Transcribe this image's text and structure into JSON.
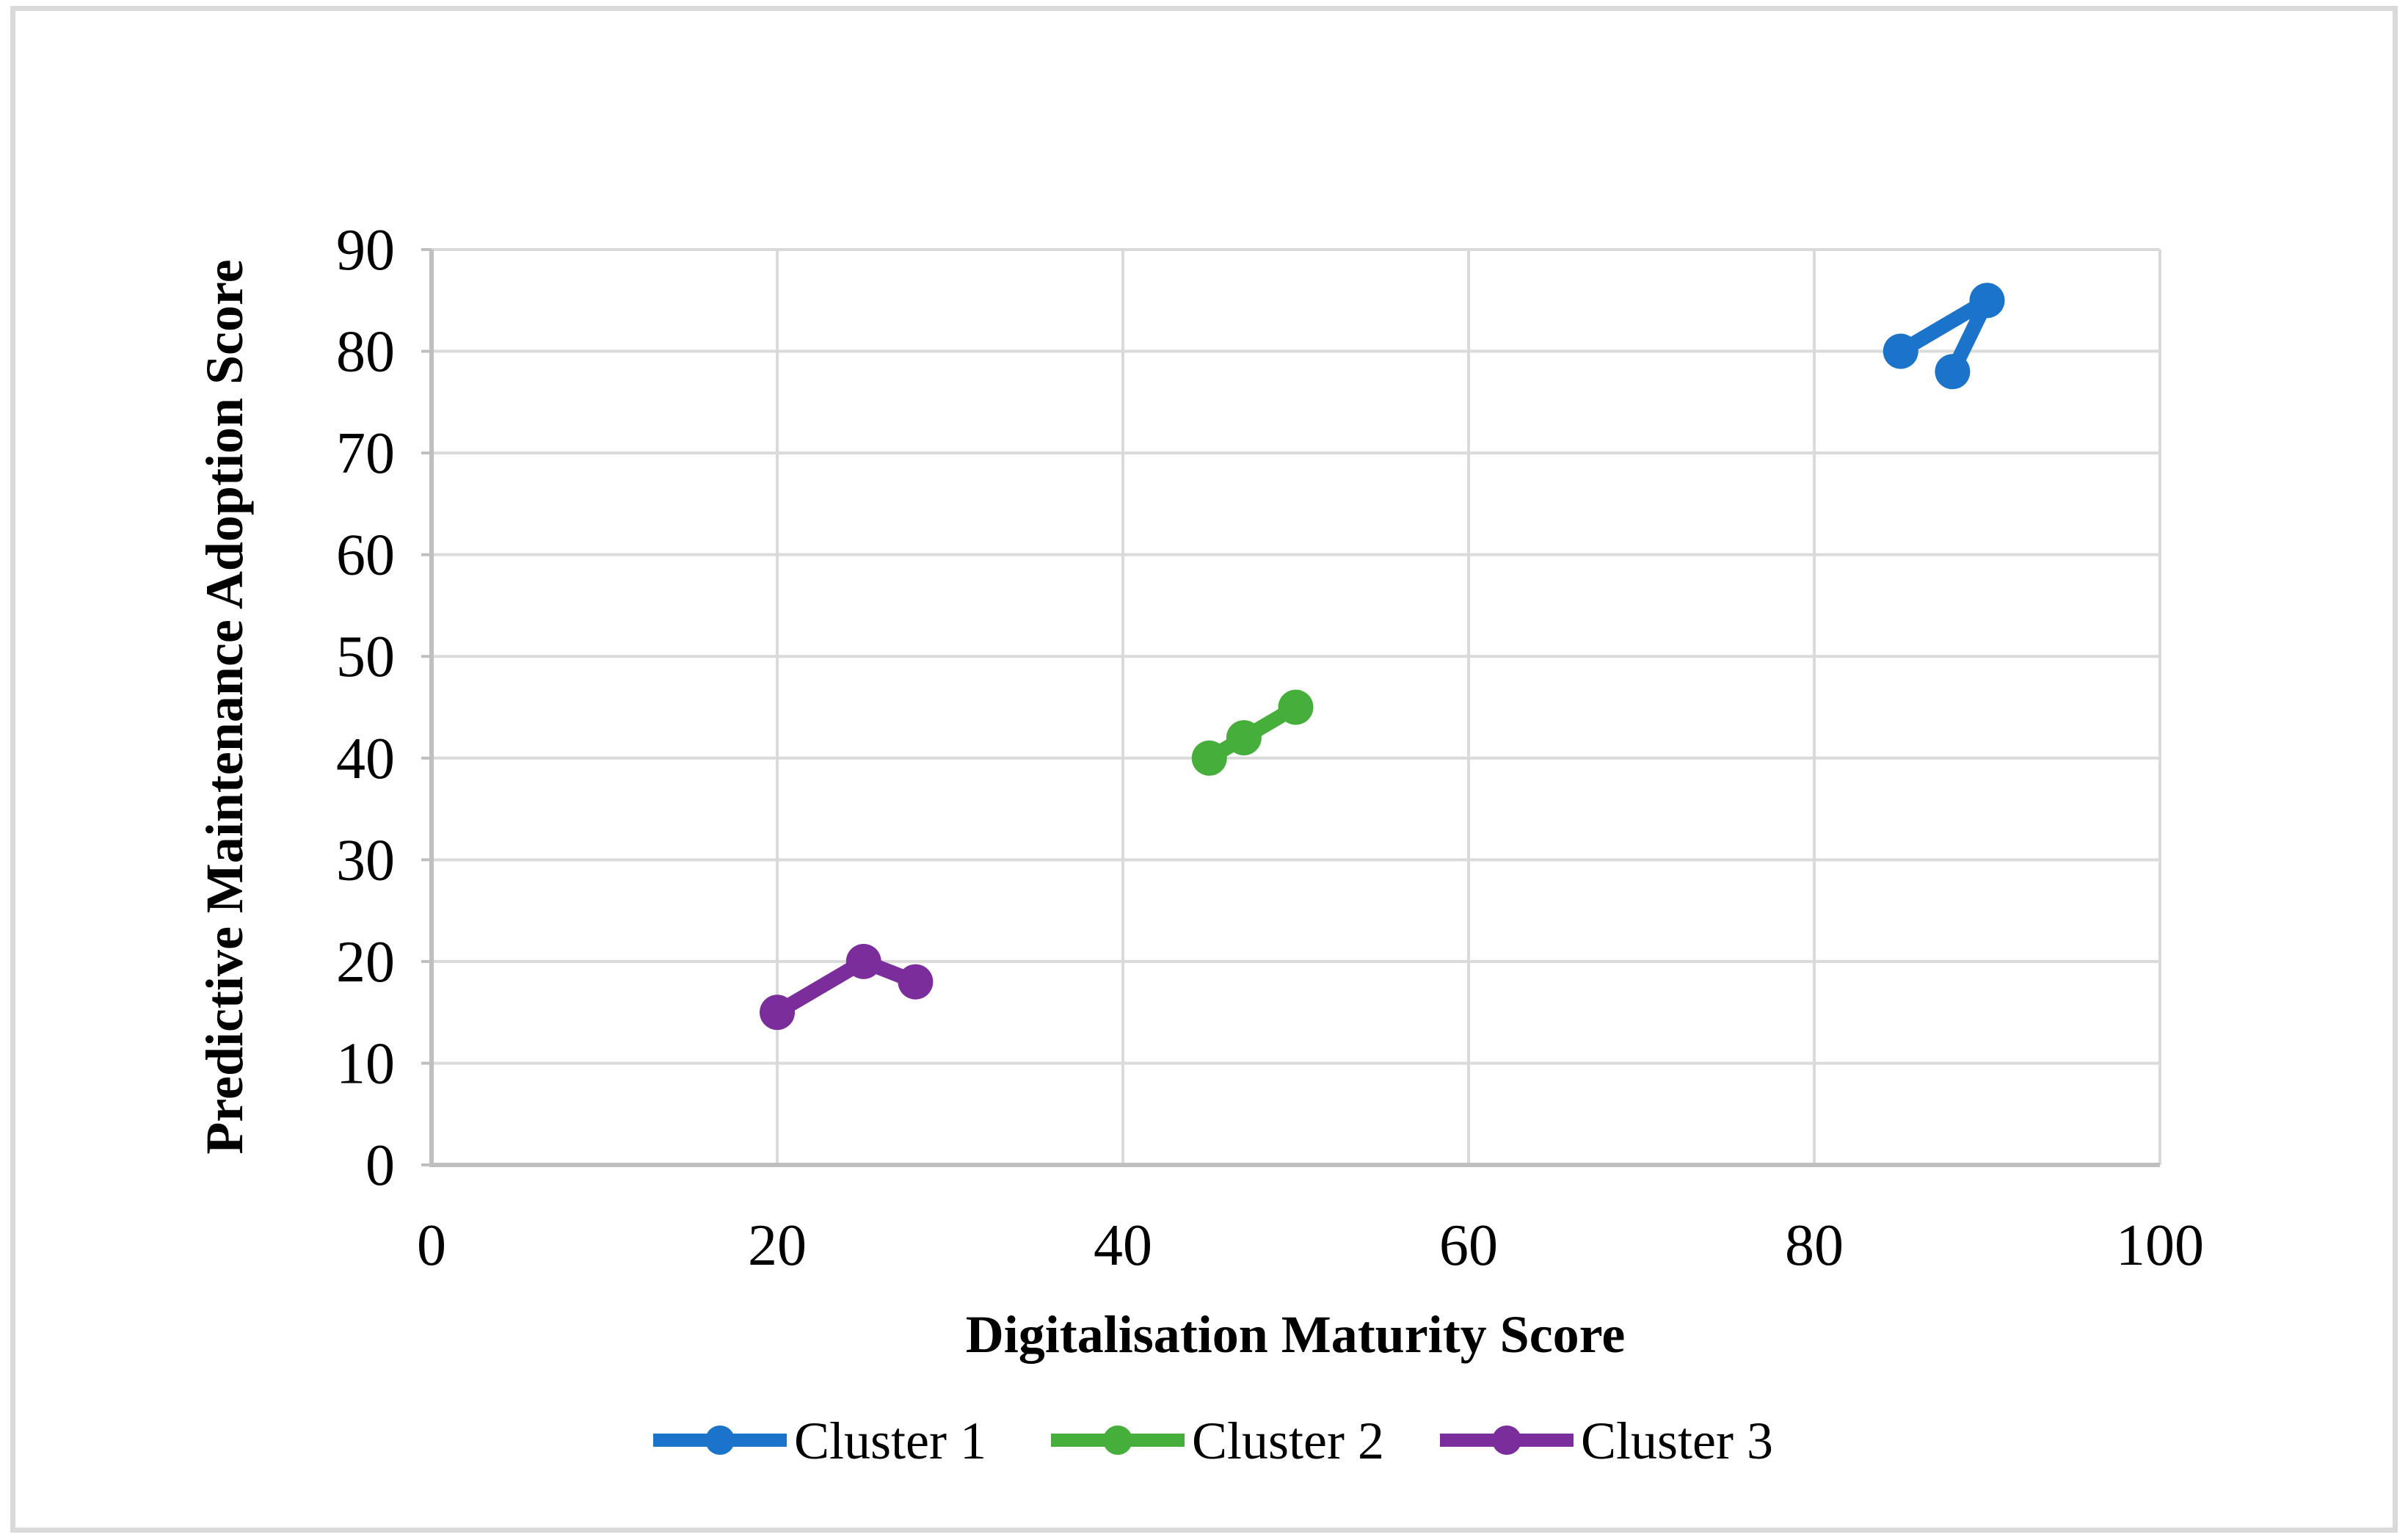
{
  "figure": {
    "border_color": "#DADADA",
    "background_color": "#FFFFFF"
  },
  "chart_data": {
    "type": "line",
    "title": "",
    "xlabel": "Digitalisation Maturity Score",
    "ylabel": "Predictive Maintenance Adoption Score",
    "xlim": [
      0,
      100
    ],
    "ylim": [
      0,
      90
    ],
    "x_ticks": [
      0,
      20,
      40,
      60,
      80,
      100
    ],
    "y_ticks": [
      0,
      10,
      20,
      30,
      40,
      50,
      60,
      70,
      80,
      90
    ],
    "grid": true,
    "legend_position": "bottom",
    "series": [
      {
        "name": "Cluster 1",
        "color": "#1B74C9",
        "points": [
          [
            85,
            80
          ],
          [
            90,
            85
          ],
          [
            88,
            78
          ]
        ]
      },
      {
        "name": "Cluster 2",
        "color": "#46AE3B",
        "points": [
          [
            45,
            40
          ],
          [
            47,
            42
          ],
          [
            50,
            45
          ]
        ]
      },
      {
        "name": "Cluster 3",
        "color": "#7C2D9C",
        "points": [
          [
            20,
            15
          ],
          [
            25,
            20
          ],
          [
            28,
            18
          ]
        ]
      }
    ]
  }
}
